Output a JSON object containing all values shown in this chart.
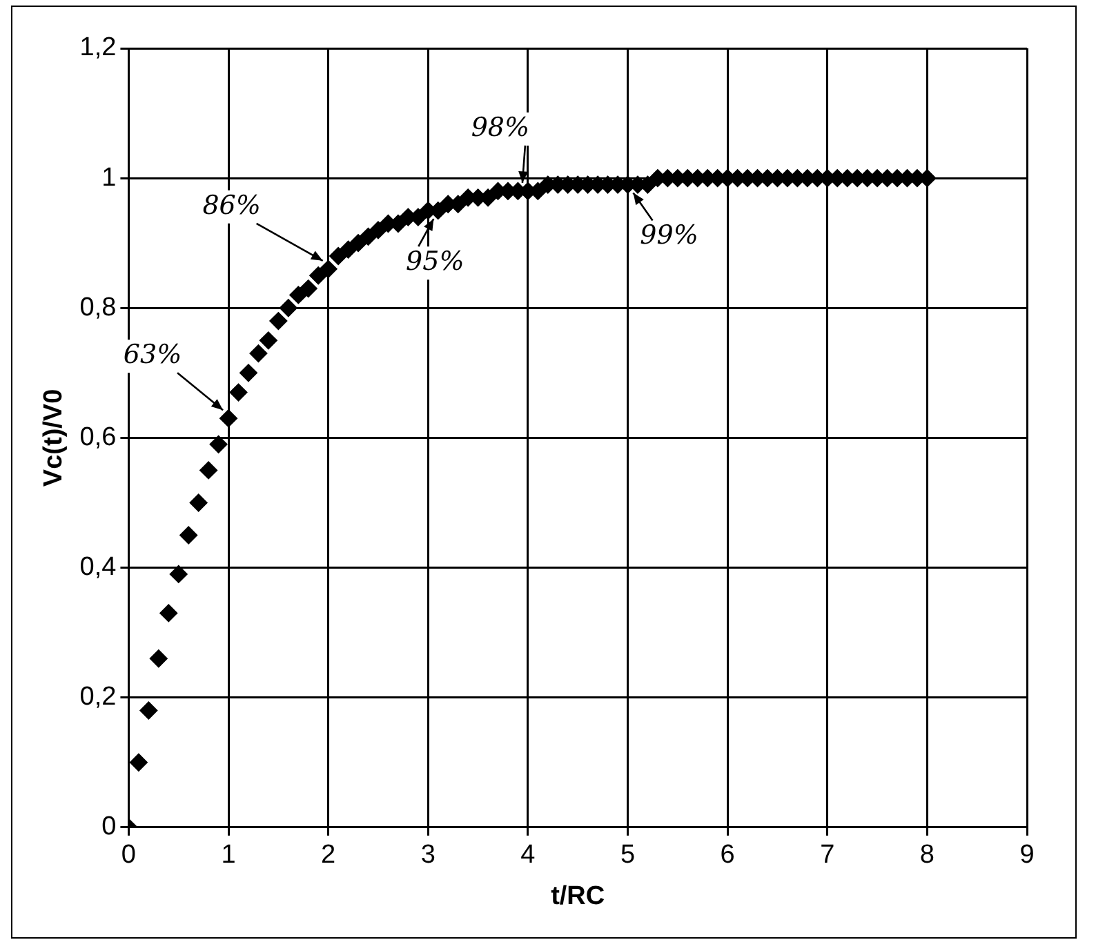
{
  "chart_data": {
    "type": "scatter",
    "xlabel": "t/RC",
    "ylabel": "Vc(t)/V0",
    "x": [
      0,
      0.1,
      0.2,
      0.3,
      0.4,
      0.5,
      0.6,
      0.7,
      0.8,
      0.9,
      1,
      1.1,
      1.2,
      1.3,
      1.4,
      1.5,
      1.6,
      1.7,
      1.8,
      1.9,
      2,
      2.1,
      2.2,
      2.3,
      2.4,
      2.5,
      2.6,
      2.7,
      2.8,
      2.9,
      3,
      3.1,
      3.2,
      3.3,
      3.4,
      3.5,
      3.6,
      3.7,
      3.8,
      3.9,
      4,
      4.1,
      4.2,
      4.3,
      4.4,
      4.5,
      4.6,
      4.7,
      4.8,
      4.9,
      5,
      5.1,
      5.2,
      5.3,
      5.4,
      5.5,
      5.6,
      5.7,
      5.8,
      5.9,
      6,
      6.1,
      6.2,
      6.3,
      6.4,
      6.5,
      6.6,
      6.7,
      6.8,
      6.9,
      7,
      7.1,
      7.2,
      7.3,
      7.4,
      7.5,
      7.6,
      7.7,
      7.8,
      7.9,
      8
    ],
    "series": [
      {
        "color": "#000000",
        "values": [
          0,
          0.1,
          0.18,
          0.26,
          0.33,
          0.39,
          0.45,
          0.5,
          0.55,
          0.59,
          0.63,
          0.67,
          0.7,
          0.73,
          0.75,
          0.78,
          0.8,
          0.82,
          0.83,
          0.85,
          0.86,
          0.88,
          0.89,
          0.9,
          0.91,
          0.92,
          0.93,
          0.93,
          0.94,
          0.94,
          0.95,
          0.95,
          0.96,
          0.96,
          0.97,
          0.97,
          0.97,
          0.98,
          0.98,
          0.98,
          0.98,
          0.98,
          0.99,
          0.99,
          0.99,
          0.99,
          0.99,
          0.99,
          0.99,
          0.99,
          0.99,
          0.99,
          0.99,
          1,
          1,
          1,
          1,
          1,
          1,
          1,
          1,
          1,
          1,
          1,
          1,
          1,
          1,
          1,
          1,
          1,
          1,
          1,
          1,
          1,
          1,
          1,
          1,
          1,
          1,
          1,
          1
        ]
      }
    ],
    "marker": "diamond",
    "grid": true,
    "xlim": [
      0,
      9
    ],
    "xticks": [
      0,
      1,
      2,
      3,
      4,
      5,
      6,
      7,
      8,
      9
    ],
    "ylim": [
      0,
      1.2
    ],
    "yticks": [
      0,
      {
        "value": 0.2,
        "label": "0,2"
      },
      {
        "value": 0.4,
        "label": "0,4"
      },
      {
        "value": 0.6,
        "label": "0,6"
      },
      {
        "value": 0.8,
        "label": "0,8"
      },
      1,
      {
        "value": 1.2,
        "label": "1,2"
      }
    ],
    "annotations": [
      {
        "text": "63%",
        "x": 1,
        "y": 0.63
      },
      {
        "text": "86%",
        "x": 2,
        "y": 0.86
      },
      {
        "text": "95%",
        "x": 3,
        "y": 0.95
      },
      {
        "text": "98%",
        "x": 4,
        "y": 0.98
      },
      {
        "text": "99%",
        "x": 5,
        "y": 0.99
      }
    ]
  }
}
